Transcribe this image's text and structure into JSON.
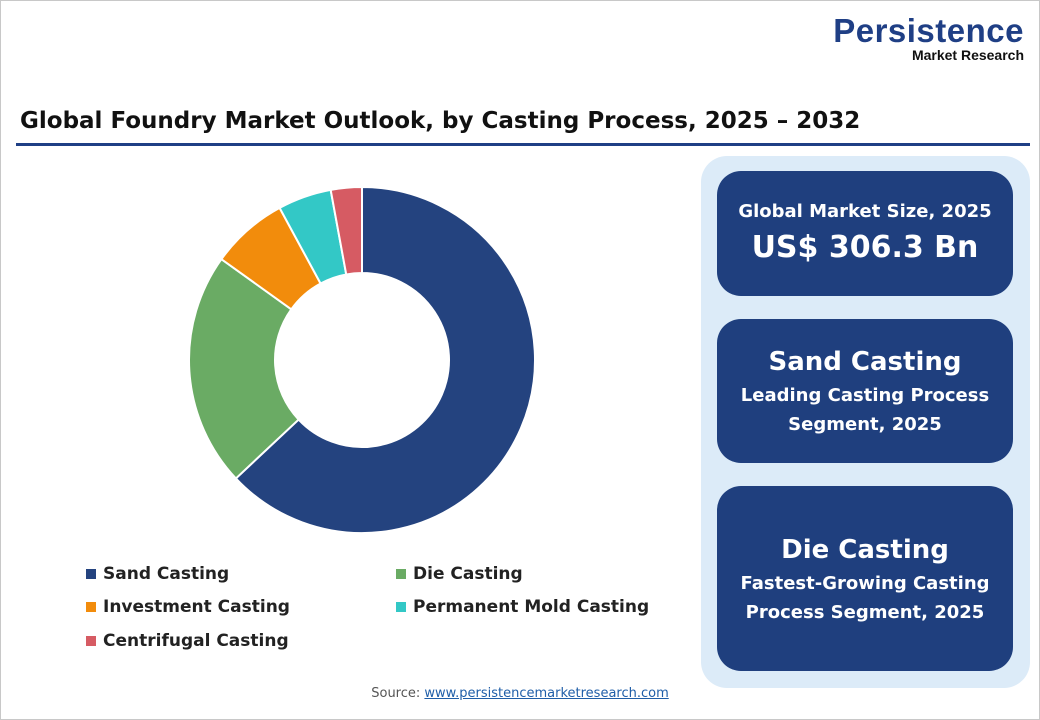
{
  "logo": {
    "main": "Persistence",
    "sub": "Market Research"
  },
  "header": {
    "title": "Global Foundry Market Outlook, by Casting Process, 2025 – 2032"
  },
  "chart_data": {
    "type": "pie",
    "variant": "donut",
    "title": "Global Foundry Market Outlook, by Casting Process, 2025 – 2032",
    "categories": [
      "Sand Casting",
      "Die Casting",
      "Investment Casting",
      "Permanent Mold Casting",
      "Centrifugal Casting"
    ],
    "values": [
      63.0,
      21.9,
      7.2,
      5.0,
      2.9
    ],
    "unit": "% share (estimated)",
    "colors": [
      "#24437f",
      "#6aab64",
      "#f28c0c",
      "#33c8c6",
      "#d65b63"
    ],
    "legend_position": "bottom"
  },
  "cards": {
    "market_size_label": "Global Market Size, 2025",
    "market_size_value": "US$ 306.3 Bn",
    "leading_name": "Sand Casting",
    "leading_desc_1": "Leading Casting Process",
    "leading_desc_2": "Segment, 2025",
    "fastest_name": "Die Casting",
    "fastest_desc_1": "Fastest-Growing Casting",
    "fastest_desc_2": "Process Segment, 2025"
  },
  "source": {
    "label": "Source:",
    "link": "www.persistencemarketresearch.com"
  }
}
